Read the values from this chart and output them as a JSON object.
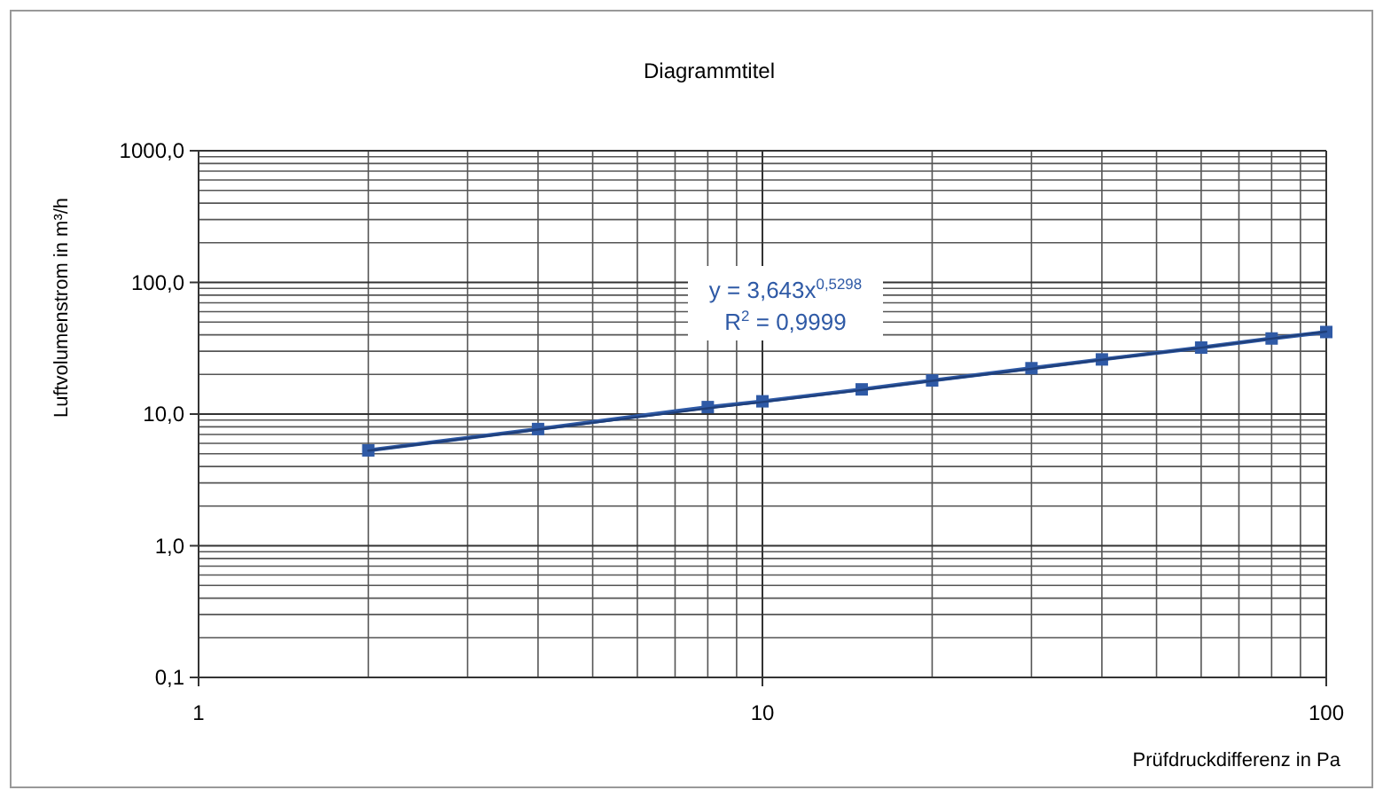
{
  "chart_data": {
    "type": "line",
    "title": "Diagrammtitel",
    "xlabel": "Prüfdruckdifferenz in Pa",
    "ylabel": "Luftvolumenstrom in m³/h",
    "log": "xy",
    "grid": true,
    "marker": "square",
    "line_style": "solid",
    "xlim": [
      1,
      100
    ],
    "xticks": [
      1,
      10,
      100
    ],
    "ylim": [
      0.1,
      1000
    ],
    "yticks": [
      {
        "value": 0.1,
        "label": "0,1"
      },
      {
        "value": 1,
        "label": "1,0"
      },
      {
        "value": 10,
        "label": "10,0"
      },
      {
        "value": 100,
        "label": "100,0"
      },
      {
        "value": 1000,
        "label": "1000,0"
      }
    ],
    "x": [
      2,
      4,
      8,
      10,
      15,
      20,
      30,
      40,
      60,
      80,
      100
    ],
    "series": [
      {
        "color": "#2f5aa6",
        "values": [
          5.3,
          7.7,
          11.3,
          12.5,
          15.4,
          18,
          22.3,
          26,
          32,
          37.5,
          42
        ]
      },
      {
        "type": "line",
        "marker": "none",
        "color": "#1f3f7a",
        "x": [
          2,
          4,
          8,
          10,
          15,
          20,
          30,
          40,
          60,
          80,
          100
        ],
        "values": [
          5.27,
          7.63,
          11.05,
          12.35,
          15.23,
          17.87,
          22.06,
          25.87,
          31.93,
          37.43,
          42.33
        ]
      }
    ],
    "annotations": [
      "y = 3,643x$^{0,5298}$",
      "R$^{2}$ = 0,9999"
    ]
  }
}
